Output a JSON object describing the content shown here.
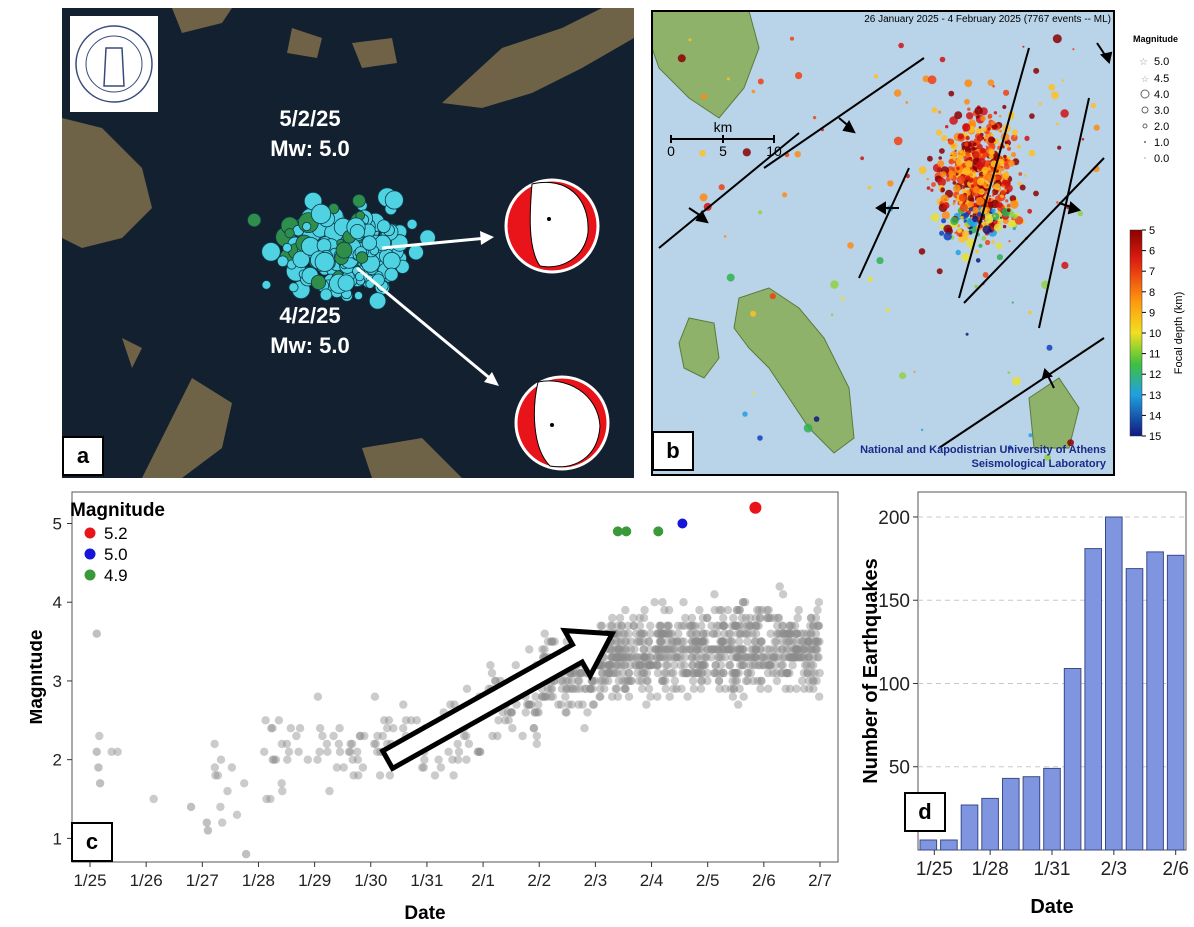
{
  "panel_a": {
    "label": "a",
    "logo_text": "ΕΘΝΙΚΟΝ ΑΣΤΕΡΟΣΚΟΠΕΙΟΝ ΑΘΗΝΩΝ · NATIONAL OBSERVATORY ATHENS",
    "events": [
      {
        "date": "5/2/25",
        "mw": "Mw: 5.0"
      },
      {
        "date": "4/2/25",
        "mw": "Mw: 5.0"
      }
    ],
    "colors": {
      "sea": "#12202f",
      "cluster_main": "#4fd3e2",
      "cluster_secondary": "#2f8f4a",
      "beachball": "#e8141a"
    }
  },
  "panel_b": {
    "label": "b",
    "header": "26 January 2025 - 4 February 2025 (7767 events -- ML)",
    "scale_unit": "km",
    "scale_ticks": [
      "0",
      "5",
      "10"
    ],
    "magnitude_legend_title": "Magnitude",
    "magnitude_legend": [
      "5.0",
      "4.5",
      "4.0",
      "3.0",
      "2.0",
      "1.0",
      "0.0"
    ],
    "colorbar_label": "Focal depth (km)",
    "colorbar_ticks": [
      "5",
      "6",
      "7",
      "8",
      "9",
      "10",
      "11",
      "12",
      "13",
      "14",
      "15"
    ],
    "credit_line1": "National and Kapodistrian University of Athens",
    "credit_line2": "Seismological Laboratory",
    "colors": {
      "sea": "#b9d3e8",
      "land": "#8fb26b",
      "credit_text": "#1a2a8a"
    }
  },
  "chart_data": [
    {
      "type": "scatter",
      "panel_label": "c",
      "xlabel": "Date",
      "ylabel": "Magnitude",
      "x_ticks": [
        "1/25",
        "1/26",
        "1/27",
        "1/28",
        "1/29",
        "1/30",
        "1/31",
        "2/1",
        "2/2",
        "2/3",
        "2/4",
        "2/5",
        "2/6",
        "2/7"
      ],
      "xlim": [
        0,
        13.6
      ],
      "ylim": [
        0.7,
        5.4
      ],
      "y_ticks": [
        1,
        2,
        3,
        4,
        5
      ],
      "legend_title": "Magnitude",
      "legend_position": "top-left",
      "highlighted": [
        {
          "name": "5.2",
          "color": "#e8141a",
          "points": [
            [
              11.85,
              5.2
            ]
          ]
        },
        {
          "name": "5.0",
          "color": "#1616d8",
          "points": [
            [
              10.55,
              5.0
            ]
          ]
        },
        {
          "name": "4.9",
          "color": "#3a9a3a",
          "points": [
            [
              9.4,
              4.9
            ],
            [
              9.55,
              4.9
            ],
            [
              10.12,
              4.9
            ]
          ]
        }
      ],
      "point_color": "#8c8c8c",
      "notable_points": [
        {
          "x": 0.12,
          "y": 3.6
        },
        {
          "x": 0.12,
          "y": 2.1
        },
        {
          "x": 0.15,
          "y": 1.9
        },
        {
          "x": 0.18,
          "y": 1.7
        },
        {
          "x": 1.8,
          "y": 1.4
        },
        {
          "x": 2.08,
          "y": 1.2
        },
        {
          "x": 2.1,
          "y": 1.1
        },
        {
          "x": 2.78,
          "y": 0.8
        }
      ],
      "trend_arrow": {
        "from": [
          5.3,
          2.0
        ],
        "to": [
          9.3,
          3.6
        ]
      }
    },
    {
      "type": "bar",
      "panel_label": "d",
      "xlabel": "Date",
      "ylabel": "Number of Earthquakes",
      "categories": [
        "1/25",
        "1/26",
        "1/27",
        "1/28",
        "1/29",
        "1/30",
        "1/31",
        "2/1",
        "2/2",
        "2/3",
        "2/4",
        "2/5",
        "2/6"
      ],
      "values": [
        6,
        6,
        27,
        31,
        43,
        44,
        49,
        109,
        181,
        200,
        169,
        179,
        177
      ],
      "x_tick_labels": [
        "1/25",
        "1/28",
        "1/31",
        "2/3",
        "2/6"
      ],
      "y_ticks": [
        50,
        100,
        150,
        200
      ],
      "ylim": [
        0,
        215
      ],
      "grid": "horizontal dashed",
      "bar_color": "#7f95e0"
    }
  ]
}
